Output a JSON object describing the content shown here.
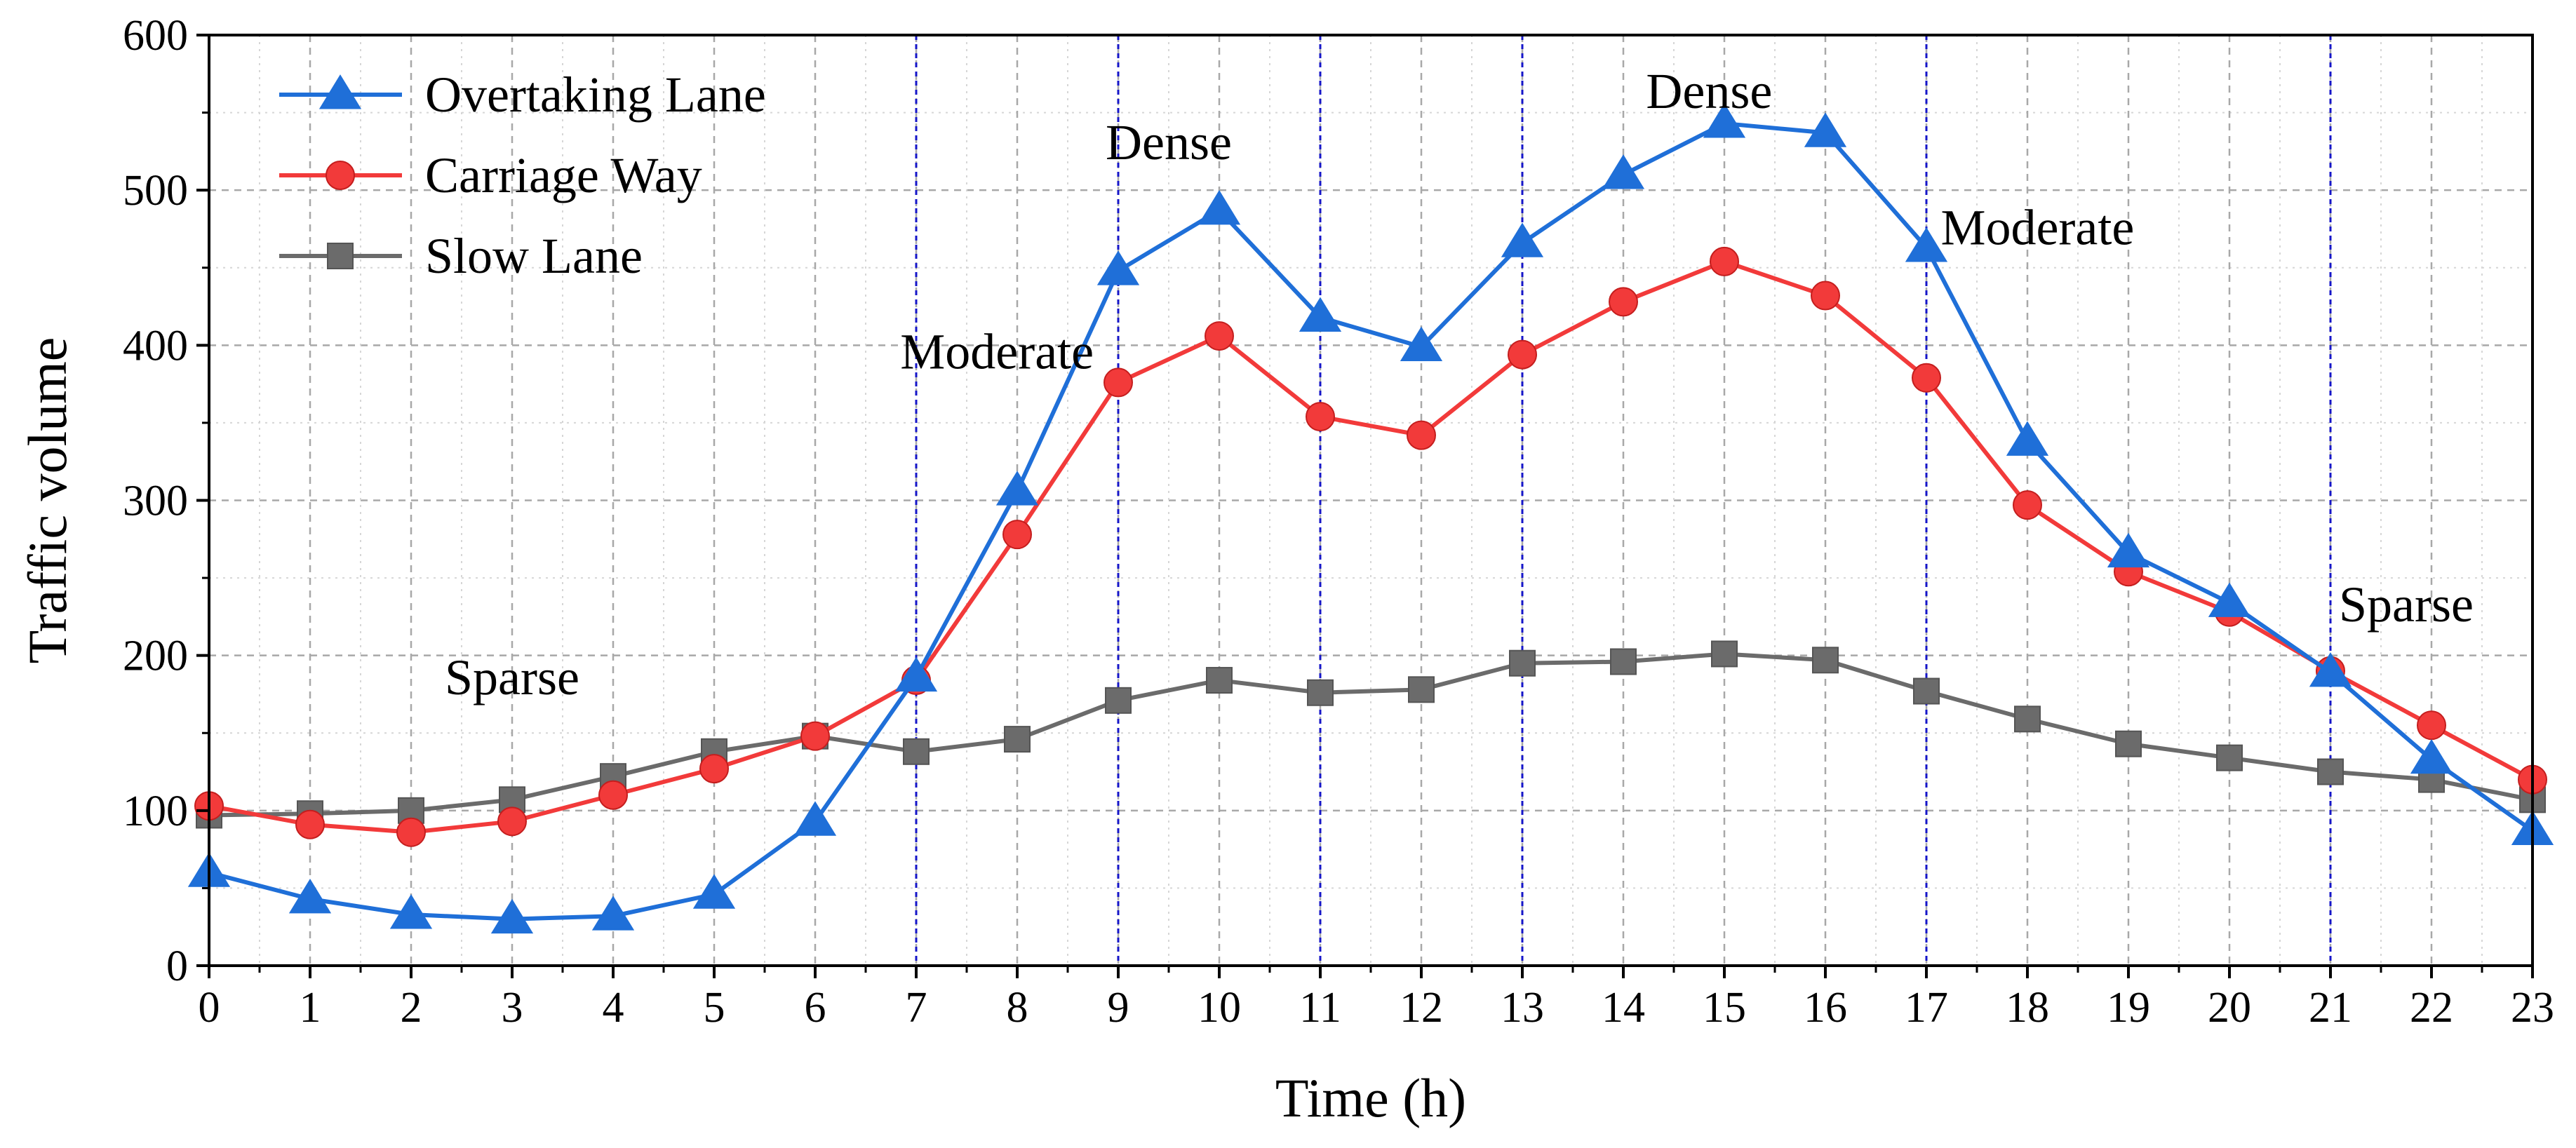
{
  "chart_data": {
    "type": "line",
    "title": "",
    "xlabel": "Time (h)",
    "ylabel": "Traffic volume",
    "xlim": [
      0,
      23
    ],
    "ylim": [
      0,
      600
    ],
    "x_ticks": [
      0,
      1,
      2,
      3,
      4,
      5,
      6,
      7,
      8,
      9,
      10,
      11,
      12,
      13,
      14,
      15,
      16,
      17,
      18,
      19,
      20,
      21,
      22,
      23
    ],
    "y_ticks": [
      0,
      100,
      200,
      300,
      400,
      500,
      600
    ],
    "grid": true,
    "legend_position": "top-left",
    "x": [
      0,
      1,
      2,
      3,
      4,
      5,
      6,
      7,
      8,
      9,
      10,
      11,
      12,
      13,
      14,
      15,
      16,
      17,
      18,
      19,
      20,
      21,
      22,
      23
    ],
    "series": [
      {
        "name": "Overtaking Lane",
        "color": "#1f6fd8",
        "marker": "triangle",
        "values": [
          60,
          43,
          33,
          30,
          32,
          46,
          93,
          186,
          306,
          448,
          487,
          418,
          399,
          466,
          510,
          543,
          537,
          463,
          338,
          266,
          234,
          189,
          133,
          87
        ]
      },
      {
        "name": "Carriage Way",
        "color": "#f23a3a",
        "marker": "circle",
        "values": [
          103,
          91,
          86,
          93,
          110,
          127,
          148,
          184,
          278,
          376,
          406,
          354,
          342,
          394,
          428,
          454,
          432,
          379,
          297,
          254,
          228,
          190,
          155,
          120
        ]
      },
      {
        "name": "Slow Lane",
        "color": "#6b6b6b",
        "marker": "square",
        "values": [
          97,
          98,
          100,
          107,
          122,
          138,
          148,
          138,
          146,
          171,
          184,
          176,
          178,
          195,
          196,
          201,
          197,
          177,
          159,
          143,
          134,
          125,
          120,
          107
        ]
      }
    ],
    "phase_boundaries": [
      7,
      9,
      11,
      13,
      17,
      21
    ],
    "annotations": [
      {
        "text": "Sparse",
        "x": 3,
        "y": 175
      },
      {
        "text": "Moderate",
        "x": 7.8,
        "y": 385
      },
      {
        "text": "Dense",
        "x": 9.5,
        "y": 520
      },
      {
        "text": "Dense",
        "x": 14.85,
        "y": 553
      },
      {
        "text": "Moderate",
        "x": 18.1,
        "y": 465
      },
      {
        "text": "Sparse",
        "x": 21.75,
        "y": 222
      }
    ]
  }
}
